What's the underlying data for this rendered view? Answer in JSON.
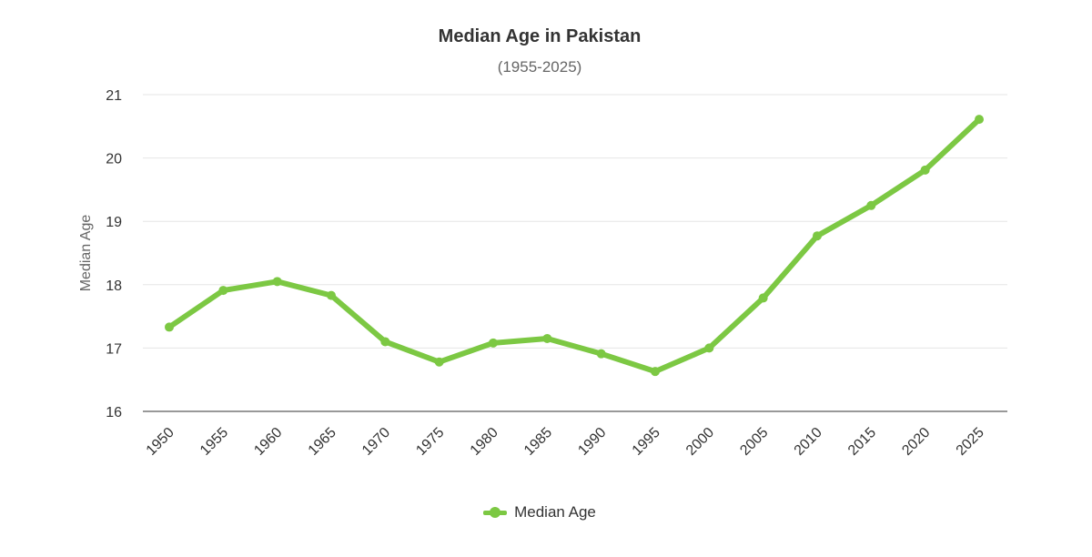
{
  "chart_data": {
    "type": "line",
    "title": "Median Age in Pakistan",
    "subtitle": "(1955-2025)",
    "xlabel": "",
    "ylabel": "Median Age",
    "x": [
      "1950",
      "1955",
      "1960",
      "1965",
      "1970",
      "1975",
      "1980",
      "1985",
      "1990",
      "1995",
      "2000",
      "2005",
      "2010",
      "2015",
      "2020",
      "2025"
    ],
    "series": [
      {
        "name": "Median Age",
        "color": "#7cc843",
        "values": [
          17.33,
          17.91,
          18.05,
          17.83,
          17.1,
          16.78,
          17.08,
          17.15,
          16.91,
          16.63,
          17.0,
          17.79,
          18.77,
          19.25,
          19.81,
          20.61
        ]
      }
    ],
    "ylim": [
      16,
      21
    ],
    "yticks": [
      16,
      17,
      18,
      19,
      20,
      21
    ],
    "grid": true,
    "legend_position": "bottom"
  }
}
